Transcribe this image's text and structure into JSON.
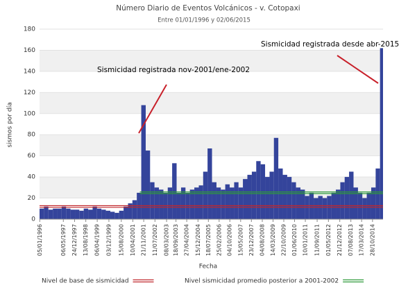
{
  "chart_data": {
    "type": "bar",
    "title": "Número Diario de Eventos Volcánicos -  v. Cotopaxi",
    "subtitle": "Entre 01/01/1996 y 02/06/2015",
    "ylabel": "sismos por día",
    "xlabel": "Fecha",
    "color": "#34449b",
    "xlim": [
      "01/01/1996",
      "02/06/2015"
    ],
    "ylim": [
      0,
      180
    ],
    "yticks": [
      0,
      20,
      40,
      60,
      80,
      100,
      120,
      140,
      160,
      180
    ],
    "xticks": [
      "05/01/1996",
      "06/05/1997",
      "24/12/1997",
      "13/08/1998",
      "06/04/1999",
      "03/12/1999",
      "15/08/2000",
      "10/04/2001",
      "21/11/2001",
      "11/07/2002",
      "08/03/2003",
      "18/09/2003",
      "27/04/2004",
      "15/12/2004",
      "18/07/2005",
      "25/02/2006",
      "04/10/2006",
      "15/05/2007",
      "23/12/2007",
      "04/08/2008",
      "14/03/2009",
      "22/10/2009",
      "01/06/2010",
      "10/01/2011",
      "11/09/2011",
      "01/05/2012",
      "21/12/2012",
      "07/08/2013",
      "17/03/2014",
      "28/10/2014"
    ],
    "grid": true,
    "x": [
      "01/01/1996",
      "01/04/1996",
      "01/07/1996",
      "01/10/1996",
      "01/01/1997",
      "01/04/1997",
      "01/07/1997",
      "01/10/1997",
      "01/01/1998",
      "01/04/1998",
      "01/07/1998",
      "01/10/1998",
      "01/01/1999",
      "01/04/1999",
      "01/07/1999",
      "01/10/1999",
      "01/01/2000",
      "01/04/2000",
      "01/07/2000",
      "01/10/2000",
      "01/01/2001",
      "01/04/2001",
      "01/07/2001",
      "01/10/2001",
      "01/01/2002",
      "01/04/2002",
      "01/07/2002",
      "01/10/2002",
      "01/01/2003",
      "01/04/2003",
      "01/07/2003",
      "01/10/2003",
      "01/01/2004",
      "01/04/2004",
      "01/07/2004",
      "01/10/2004",
      "01/01/2005",
      "01/04/2005",
      "01/07/2005",
      "01/10/2005",
      "01/01/2006",
      "01/04/2006",
      "01/07/2006",
      "01/10/2006",
      "01/01/2007",
      "01/04/2007",
      "01/07/2007",
      "01/10/2007",
      "01/01/2008",
      "01/04/2008",
      "01/07/2008",
      "01/10/2008",
      "01/01/2009",
      "01/04/2009",
      "01/07/2009",
      "01/10/2009",
      "01/01/2010",
      "01/04/2010",
      "01/07/2010",
      "01/10/2010",
      "01/01/2011",
      "01/04/2011",
      "01/07/2011",
      "01/10/2011",
      "01/01/2012",
      "01/04/2012",
      "01/07/2012",
      "01/10/2012",
      "01/01/2013",
      "01/04/2013",
      "01/07/2013",
      "01/10/2013",
      "01/01/2014",
      "01/04/2014",
      "01/07/2014",
      "01/10/2014",
      "01/01/2015",
      "01/04/2015"
    ],
    "values": [
      10,
      12,
      9,
      10,
      10,
      12,
      10,
      9,
      9,
      8,
      10,
      9,
      12,
      10,
      9,
      8,
      7,
      6,
      8,
      12,
      15,
      18,
      25,
      108,
      65,
      35,
      30,
      28,
      25,
      30,
      53,
      25,
      30,
      25,
      28,
      30,
      32,
      45,
      67,
      35,
      30,
      28,
      33,
      30,
      35,
      30,
      38,
      42,
      45,
      55,
      52,
      40,
      45,
      77,
      48,
      42,
      40,
      35,
      30,
      28,
      22,
      25,
      20,
      22,
      20,
      22,
      25,
      28,
      35,
      40,
      45,
      30,
      25,
      20,
      25,
      30,
      48,
      162
    ],
    "reference_lines": [
      {
        "name": "Nivel de base de sismicidad",
        "color": "#c0272d",
        "value": 12,
        "start": "01/01/1996",
        "end": "02/06/2015"
      },
      {
        "name": "Nivel sismicidad promedio posterior a 2001-2002",
        "color": "#2e9a3a",
        "value": 25,
        "start": "01/09/2001",
        "end": "02/06/2015"
      }
    ],
    "annotations": [
      "Sismicidad registrada nov-2001/ene-2002",
      "Sismicidad registrada desde abr-2015"
    ]
  }
}
